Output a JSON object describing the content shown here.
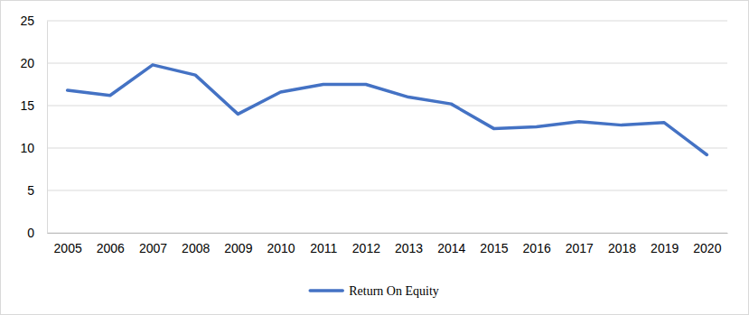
{
  "chart_data": {
    "type": "line",
    "categories": [
      "2005",
      "2006",
      "2007",
      "2008",
      "2009",
      "2010",
      "2011",
      "2012",
      "2013",
      "2014",
      "2015",
      "2016",
      "2017",
      "2018",
      "2019",
      "2020"
    ],
    "series": [
      {
        "name": "Return On Equity",
        "color": "#4472c4",
        "values": [
          16.8,
          16.2,
          19.8,
          18.6,
          14.0,
          16.6,
          17.5,
          17.5,
          16.0,
          15.2,
          12.3,
          12.5,
          13.1,
          12.7,
          13.0,
          9.2
        ]
      }
    ],
    "ylim": [
      0,
      25
    ],
    "yticks": [
      0,
      5,
      10,
      15,
      20,
      25
    ],
    "grid": true,
    "legend": "bottom"
  }
}
